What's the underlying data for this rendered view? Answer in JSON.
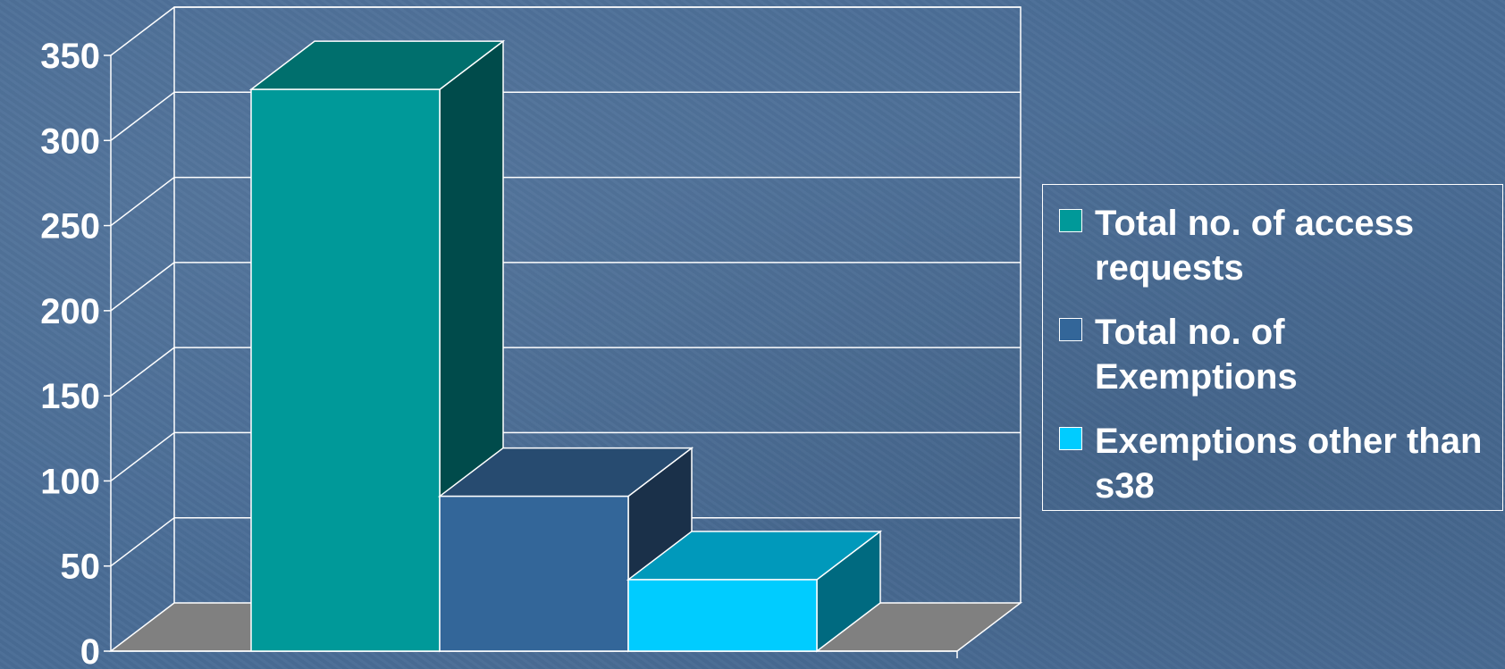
{
  "chart_data": {
    "type": "bar",
    "categories": [
      ""
    ],
    "series": [
      {
        "name": "Total no. of access requests",
        "values": [
          330
        ],
        "color": "#009999",
        "top": "#006f6d",
        "side": "#004b4b"
      },
      {
        "name": "Total no. of Exemptions",
        "values": [
          91
        ],
        "color": "#336699",
        "top": "#274b70",
        "side": "#1a3049"
      },
      {
        "name": "Exemptions other than s38",
        "values": [
          42
        ],
        "color": "#00ccff",
        "top": "#0099bb",
        "side": "#006a80"
      }
    ],
    "yticks": [
      "0",
      "50",
      "100",
      "150",
      "200",
      "250",
      "300",
      "350"
    ],
    "ylim": [
      0,
      350
    ],
    "grid": true,
    "legend": "right",
    "three_d": true,
    "xlabel": "",
    "ylabel": ""
  }
}
